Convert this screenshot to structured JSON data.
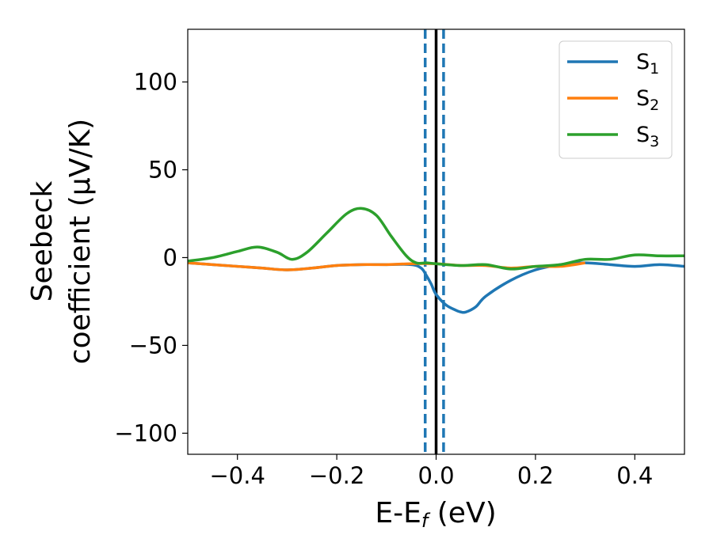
{
  "chart_data": {
    "type": "line",
    "xlabel": {
      "main": "E-E",
      "sub": "f",
      "tail": " (eV)"
    },
    "ylabel": {
      "line1": "Seebeck",
      "line2": "coefficient  (μV/K)"
    },
    "xlim": [
      -0.5,
      0.5
    ],
    "ylim": [
      -112,
      130
    ],
    "xticks": [
      {
        "value": -0.4,
        "label": "−0.4"
      },
      {
        "value": -0.2,
        "label": "−0.2"
      },
      {
        "value": 0.0,
        "label": "0.0"
      },
      {
        "value": 0.2,
        "label": "0.2"
      },
      {
        "value": 0.4,
        "label": "0.4"
      }
    ],
    "yticks": [
      {
        "value": -100,
        "label": "−100"
      },
      {
        "value": -50,
        "label": "−50"
      },
      {
        "value": 0,
        "label": "0"
      },
      {
        "value": 50,
        "label": "50"
      },
      {
        "value": 100,
        "label": "100"
      }
    ],
    "grid": false,
    "legend_position": "top-right",
    "vlines": [
      {
        "x": 0.0,
        "color": "#000000",
        "style": "solid"
      },
      {
        "x": -0.022,
        "color": "#1f77b4",
        "style": "dashed"
      },
      {
        "x": 0.015,
        "color": "#1f77b4",
        "style": "dashed"
      }
    ],
    "series": [
      {
        "name": "S",
        "sub": "1",
        "color": "#1f77b4",
        "x": [
          -0.5,
          -0.45,
          -0.4,
          -0.35,
          -0.3,
          -0.25,
          -0.2,
          -0.15,
          -0.1,
          -0.05,
          -0.03,
          -0.02,
          -0.01,
          0.0,
          0.02,
          0.04,
          0.05,
          0.06,
          0.08,
          0.1,
          0.15,
          0.2,
          0.25,
          0.3,
          0.35,
          0.4,
          0.45,
          0.5
        ],
        "y": [
          -3,
          -4,
          -5,
          -6,
          -7,
          -6,
          -4.5,
          -4,
          -4,
          -4,
          -6,
          -10,
          -15,
          -21,
          -27,
          -30,
          -31,
          -31,
          -28,
          -22,
          -13,
          -7,
          -4,
          -3,
          -4,
          -5,
          -4,
          -5
        ]
      },
      {
        "name": "S",
        "sub": "2",
        "color": "#ff7f0e",
        "x": [
          -0.5,
          -0.45,
          -0.4,
          -0.35,
          -0.3,
          -0.25,
          -0.2,
          -0.15,
          -0.1,
          -0.05,
          0.0,
          0.05,
          0.1,
          0.15,
          0.2,
          0.25,
          0.3
        ],
        "y": [
          -3,
          -4,
          -5,
          -6,
          -7,
          -6,
          -4.5,
          -4,
          -4,
          -3.5,
          -3.5,
          -4.5,
          -4.5,
          -6,
          -5,
          -5,
          -3
        ]
      },
      {
        "name": "S",
        "sub": "3",
        "color": "#2ca02c",
        "x": [
          -0.5,
          -0.45,
          -0.4,
          -0.36,
          -0.32,
          -0.29,
          -0.26,
          -0.22,
          -0.18,
          -0.15,
          -0.12,
          -0.09,
          -0.06,
          -0.04,
          -0.02,
          0.0,
          0.05,
          0.1,
          0.15,
          0.2,
          0.25,
          0.3,
          0.35,
          0.4,
          0.45,
          0.5
        ],
        "y": [
          -2,
          0,
          3.5,
          6,
          3,
          -1,
          3,
          14,
          25,
          28,
          24,
          12,
          1,
          -3,
          -3,
          -3.5,
          -4.5,
          -4,
          -6.5,
          -5,
          -4,
          -1,
          -1,
          1.5,
          1,
          1
        ]
      }
    ]
  }
}
